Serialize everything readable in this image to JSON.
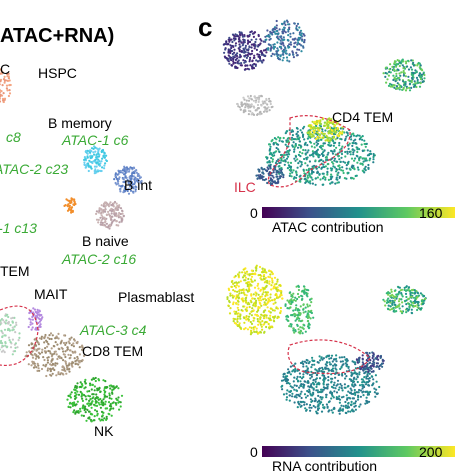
{
  "left_panel": {
    "header": "ATAC+RNA)",
    "labels": [
      {
        "text": "C",
        "style": "plain"
      },
      {
        "text": "HSPC",
        "style": "plain"
      },
      {
        "text": "c8",
        "style": "green"
      },
      {
        "text": "B memory",
        "style": "plain"
      },
      {
        "text": "ATAC-1 c6",
        "style": "green"
      },
      {
        "text": "ATAC-2 c23",
        "style": "green"
      },
      {
        "text": "B int",
        "style": "plain"
      },
      {
        "text": "-1 c13",
        "style": "green"
      },
      {
        "text": "B naive",
        "style": "plain"
      },
      {
        "text": "ATAC-2 c16",
        "style": "green"
      },
      {
        "text": "TEM",
        "style": "plain"
      },
      {
        "text": "MAIT",
        "style": "plain"
      },
      {
        "text": "Plasmablast",
        "style": "plain"
      },
      {
        "text": "ATAC-3 c4",
        "style": "green"
      },
      {
        "text": "CD8 TEM",
        "style": "plain"
      },
      {
        "text": "NK",
        "style": "plain"
      }
    ]
  },
  "panel_c": {
    "letter": "c",
    "top": {
      "labels": [
        "CD4 TEM",
        "ILC"
      ],
      "colorbar": {
        "min": 0,
        "max": 160,
        "title": "ATAC contribution"
      }
    },
    "bottom": {
      "colorbar": {
        "min": 0,
        "max": 200,
        "title": "RNA contribution"
      }
    }
  }
}
